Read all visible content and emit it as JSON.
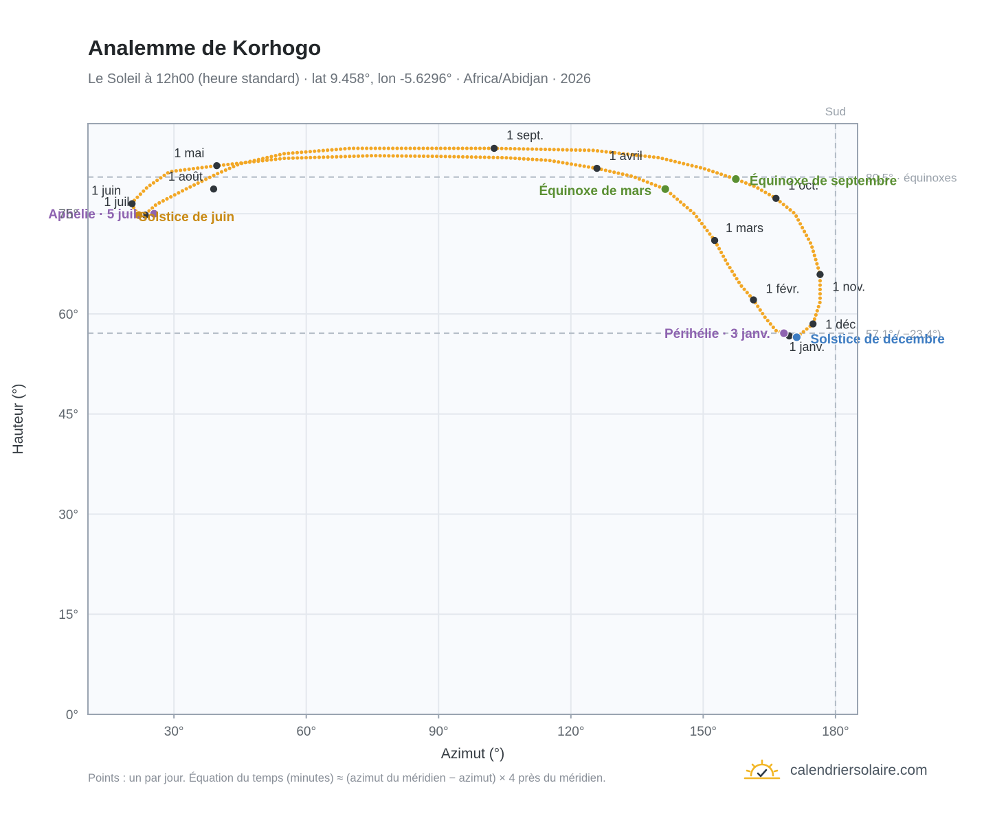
{
  "title": "Analemme de Korhogo",
  "subtitle": "Le Soleil à 12h00 (heure standard) · lat 9.458°, lon -5.6296° · Africa/Abidjan · 2026",
  "footnote": "Points : un par jour. Équation du temps (minutes) ≈ (azimut du méridien − azimut) × 4 près du méridien.",
  "brand": {
    "name": "calendriersolaire.com",
    "icon": "sun-check-icon"
  },
  "colors": {
    "curve": "#f2a725",
    "month_point": "#2f353b",
    "equinox": "#5a8f32",
    "june_solstice": "#c98a14",
    "december_solstice": "#3d7cc2",
    "apsis": "#8e63b0",
    "grid": "#e4e8ee",
    "plot_bg": "#f8fafd",
    "frame": "#9aa4b1",
    "reference_line": "#b3bcc6"
  },
  "chart_data": {
    "type": "scatter",
    "xlabel": "Azimut (°)",
    "ylabel": "Hauteur (°)",
    "xlim": [
      10.5,
      185
    ],
    "ylim": [
      0,
      88.5
    ],
    "xticks": [
      {
        "v": 30,
        "label": "30°"
      },
      {
        "v": 60,
        "label": "60°"
      },
      {
        "v": 90,
        "label": "90°"
      },
      {
        "v": 120,
        "label": "120°"
      },
      {
        "v": 150,
        "label": "150°"
      },
      {
        "v": 180,
        "label": "180°"
      }
    ],
    "yticks": [
      {
        "v": 0,
        "label": "0°"
      },
      {
        "v": 15,
        "label": "15°"
      },
      {
        "v": 30,
        "label": "30°"
      },
      {
        "v": 45,
        "label": "45°"
      },
      {
        "v": 60,
        "label": "60°"
      },
      {
        "v": 75,
        "label": "75°"
      }
    ],
    "grid": true,
    "south_line": {
      "azimuth": 180,
      "label": "Sud"
    },
    "reference_lines": [
      {
        "altitude": 80.5,
        "label": "80.5° · équinoxes"
      },
      {
        "altitude": 57.1,
        "label": "57.1° / −23.4°)"
      }
    ],
    "path_anchors": [
      [
        171.2,
        56.5
      ],
      [
        174.9,
        58.5
      ],
      [
        176.5,
        61.8
      ],
      [
        176.5,
        65.9
      ],
      [
        174.5,
        70.4
      ],
      [
        170.8,
        75.0
      ],
      [
        166.5,
        77.3
      ],
      [
        162.0,
        79.0
      ],
      [
        157.4,
        80.2
      ],
      [
        150.0,
        81.8
      ],
      [
        140.0,
        83.4
      ],
      [
        125.0,
        84.5
      ],
      [
        102.6,
        84.8
      ],
      [
        85.0,
        84.8
      ],
      [
        70.0,
        84.8
      ],
      [
        55.0,
        84.0
      ],
      [
        45.0,
        82.5
      ],
      [
        39.5,
        80.9
      ],
      [
        33.0,
        78.8
      ],
      [
        26.0,
        76.4
      ],
      [
        23.0,
        74.6
      ],
      [
        22.0,
        74.8
      ],
      [
        20.8,
        76.0
      ],
      [
        20.4,
        76.6
      ],
      [
        24.0,
        79.0
      ],
      [
        29.0,
        81.3
      ],
      [
        39.7,
        82.2
      ],
      [
        55.0,
        83.3
      ],
      [
        75.0,
        83.7
      ],
      [
        90.0,
        83.6
      ],
      [
        105.0,
        83.4
      ],
      [
        115.0,
        83.0
      ],
      [
        125.9,
        81.8
      ],
      [
        134.0,
        80.6
      ],
      [
        141.4,
        78.7
      ],
      [
        148.0,
        75.0
      ],
      [
        152.6,
        71.0
      ],
      [
        155.5,
        67.5
      ],
      [
        158.5,
        64.3
      ],
      [
        161.4,
        62.1
      ],
      [
        164.0,
        59.5
      ],
      [
        166.5,
        57.5
      ],
      [
        168.3,
        57.1
      ],
      [
        170.0,
        56.6
      ],
      [
        171.2,
        56.5
      ]
    ],
    "month_points": [
      {
        "label": "1 janv.",
        "az": 169.5,
        "alt": 56.7
      },
      {
        "label": "1 févr.",
        "az": 161.4,
        "alt": 62.1
      },
      {
        "label": "1 mars",
        "az": 152.6,
        "alt": 71.0
      },
      {
        "label": "1 avril",
        "az": 125.9,
        "alt": 81.8
      },
      {
        "label": "1 mai",
        "az": 39.7,
        "alt": 82.2
      },
      {
        "label": "1 juin",
        "az": 20.5,
        "alt": 76.5
      },
      {
        "label": "1 juil.",
        "az": 23.5,
        "alt": 74.8
      },
      {
        "label": "1 août",
        "az": 39.0,
        "alt": 78.7
      },
      {
        "label": "1 sept.",
        "az": 102.6,
        "alt": 84.8
      },
      {
        "label": "1 oct.",
        "az": 166.5,
        "alt": 77.3
      },
      {
        "label": "1 nov.",
        "az": 176.5,
        "alt": 65.9
      },
      {
        "label": "1 déc.",
        "az": 174.9,
        "alt": 58.5
      }
    ],
    "events": [
      {
        "label": "Équinoxe de mars",
        "az": 141.4,
        "alt": 78.7,
        "kind": "equinox"
      },
      {
        "label": "Équinoxe de septembre",
        "az": 157.4,
        "alt": 80.2,
        "kind": "equinox"
      },
      {
        "label": "Solstice de juin",
        "az": 22.0,
        "alt": 74.8,
        "kind": "june_solstice"
      },
      {
        "label": "Solstice de décembre",
        "az": 171.2,
        "alt": 56.5,
        "kind": "december_solstice"
      },
      {
        "label": "Aphélie · 5 juil.",
        "az": 25.5,
        "alt": 75.0,
        "kind": "apsis"
      },
      {
        "label": "Périhélie · 3 janv.",
        "az": 168.3,
        "alt": 57.1,
        "kind": "apsis"
      }
    ]
  }
}
